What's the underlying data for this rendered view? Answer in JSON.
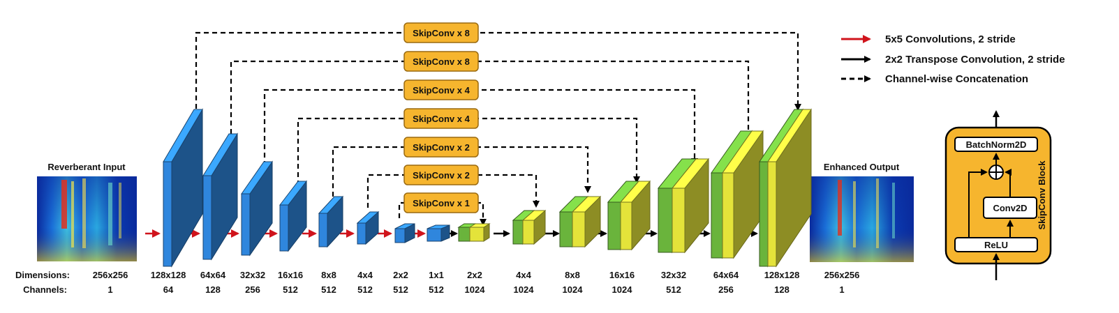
{
  "input": {
    "title": "Reverberant Input",
    "dimension": "256x256",
    "channels": "1"
  },
  "output": {
    "title": "Enhanced Output",
    "dimension": "256x256",
    "channels": "1"
  },
  "row_labels": {
    "dimensions": "Dimensions:",
    "channels": "Channels:"
  },
  "encoder": [
    {
      "dim": "128x128",
      "ch": "64"
    },
    {
      "dim": "64x64",
      "ch": "128"
    },
    {
      "dim": "32x32",
      "ch": "256"
    },
    {
      "dim": "16x16",
      "ch": "512"
    },
    {
      "dim": "8x8",
      "ch": "512"
    },
    {
      "dim": "4x4",
      "ch": "512"
    },
    {
      "dim": "2x2",
      "ch": "512"
    },
    {
      "dim": "1x1",
      "ch": "512"
    }
  ],
  "decoder": [
    {
      "dim": "2x2",
      "ch": "1024"
    },
    {
      "dim": "4x4",
      "ch": "1024"
    },
    {
      "dim": "8x8",
      "ch": "1024"
    },
    {
      "dim": "16x16",
      "ch": "1024"
    },
    {
      "dim": "32x32",
      "ch": "512"
    },
    {
      "dim": "64x64",
      "ch": "256"
    },
    {
      "dim": "128x128",
      "ch": "128"
    }
  ],
  "skip_connections": [
    "SkipConv x 8",
    "SkipConv x 8",
    "SkipConv x 4",
    "SkipConv x 4",
    "SkipConv x 2",
    "SkipConv x 2",
    "SkipConv x 1"
  ],
  "legend": [
    {
      "style": "red-arrow",
      "label": "5x5 Convolutions, 2 stride"
    },
    {
      "style": "black-arrow",
      "label": "2x2 Transpose Convolution, 2 stride"
    },
    {
      "style": "dashed-arrow",
      "label": "Channel-wise Concatenation"
    }
  ],
  "skipconv_block": {
    "title": "SkipConv Block",
    "batchnorm": "BatchNorm2D",
    "conv": "Conv2D",
    "relu": "ReLU"
  },
  "colors": {
    "encoder_blue": "#2f86dd",
    "decoder_green": "#6ab43c",
    "decoder_yellow": "#e4e33a",
    "skip_box": "#f6b52e",
    "red_arrow": "#d0141c"
  }
}
